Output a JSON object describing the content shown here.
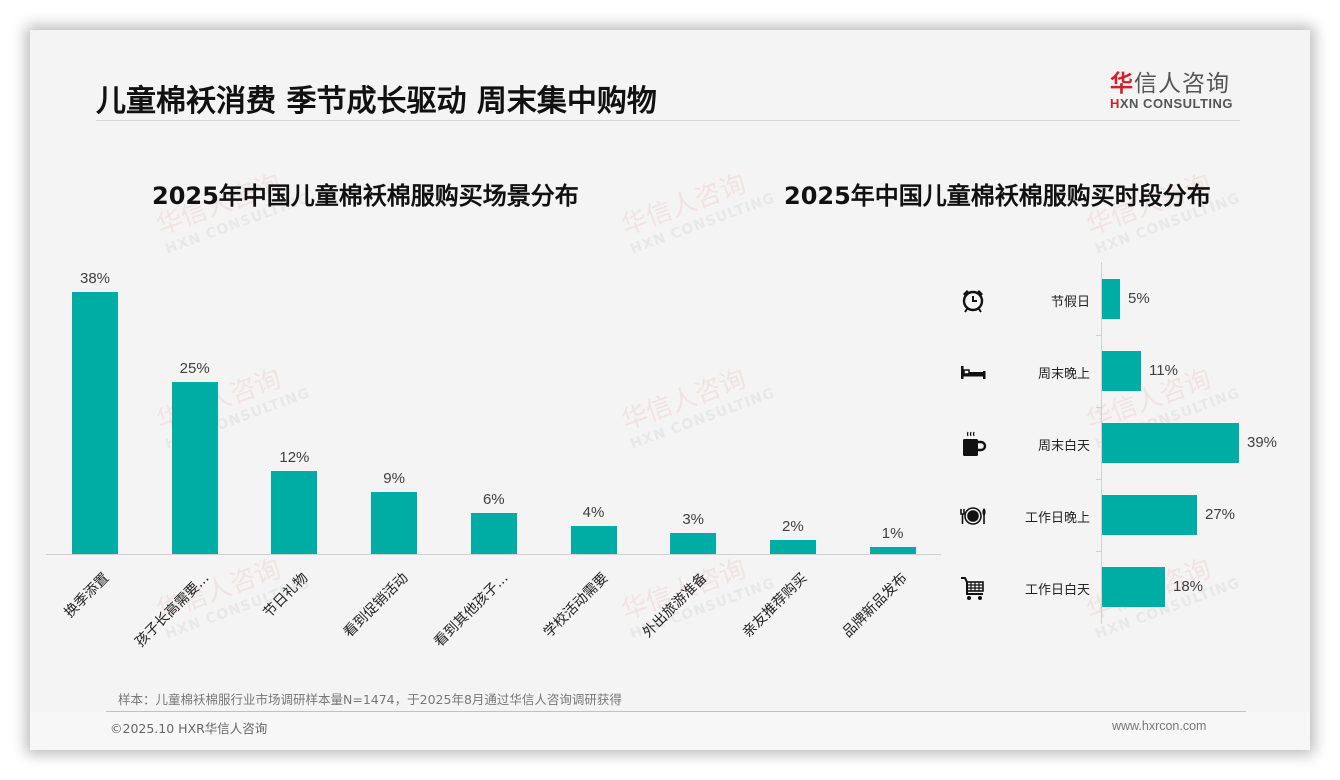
{
  "header": {
    "title": "儿童棉袄消费 季节成长驱动 周末集中购物",
    "logo_cn_red": "华",
    "logo_cn_rest": "信人咨询",
    "logo_en_prefix": "H",
    "logo_en_rest": "XN CONSULTING"
  },
  "watermark": {
    "cn": "华信人咨询",
    "en": "HXN CONSULTING"
  },
  "colors": {
    "bar": "#00ada5",
    "logo_red": "#d0202a",
    "background": "#f4f4f4"
  },
  "chart_data": [
    {
      "type": "bar",
      "title": "2025年中国儿童棉袄棉服购买场景分布",
      "categories": [
        "换季添置",
        "孩子长高需要...",
        "节日礼物",
        "看到促销活动",
        "看到其他孩子...",
        "学校活动需要",
        "外出旅游准备",
        "亲友推荐购买",
        "品牌新品发布"
      ],
      "values": [
        38,
        25,
        12,
        9,
        6,
        4,
        3,
        2,
        1
      ],
      "value_labels": [
        "38%",
        "25%",
        "12%",
        "9%",
        "6%",
        "4%",
        "3%",
        "2%",
        "1%"
      ],
      "xlabel": "",
      "ylabel": "",
      "ylim": [
        0,
        40
      ],
      "grid": false,
      "legend": "none"
    },
    {
      "type": "bar",
      "orientation": "horizontal",
      "title": "2025年中国儿童棉袄棉服购买时段分布",
      "categories": [
        "节假日",
        "周末晚上",
        "周末白天",
        "工作日晚上",
        "工作日白天"
      ],
      "values": [
        5,
        11,
        39,
        27,
        18
      ],
      "value_labels": [
        "5%",
        "11%",
        "39%",
        "27%",
        "18%"
      ],
      "icons": [
        "alarm-clock-icon",
        "bed-icon",
        "hot-coffee-icon",
        "plate-cutlery-icon",
        "shopping-cart-icon"
      ],
      "xlim": [
        0,
        40
      ],
      "grid": false,
      "legend": "none"
    }
  ],
  "footer": {
    "note": "样本：儿童棉袄棉服行业市场调研样本量N=1474，于2025年8月通过华信人咨询调研获得",
    "copyright": "©2025.10 HXR华信人咨询",
    "website": "www.hxrcon.com"
  }
}
